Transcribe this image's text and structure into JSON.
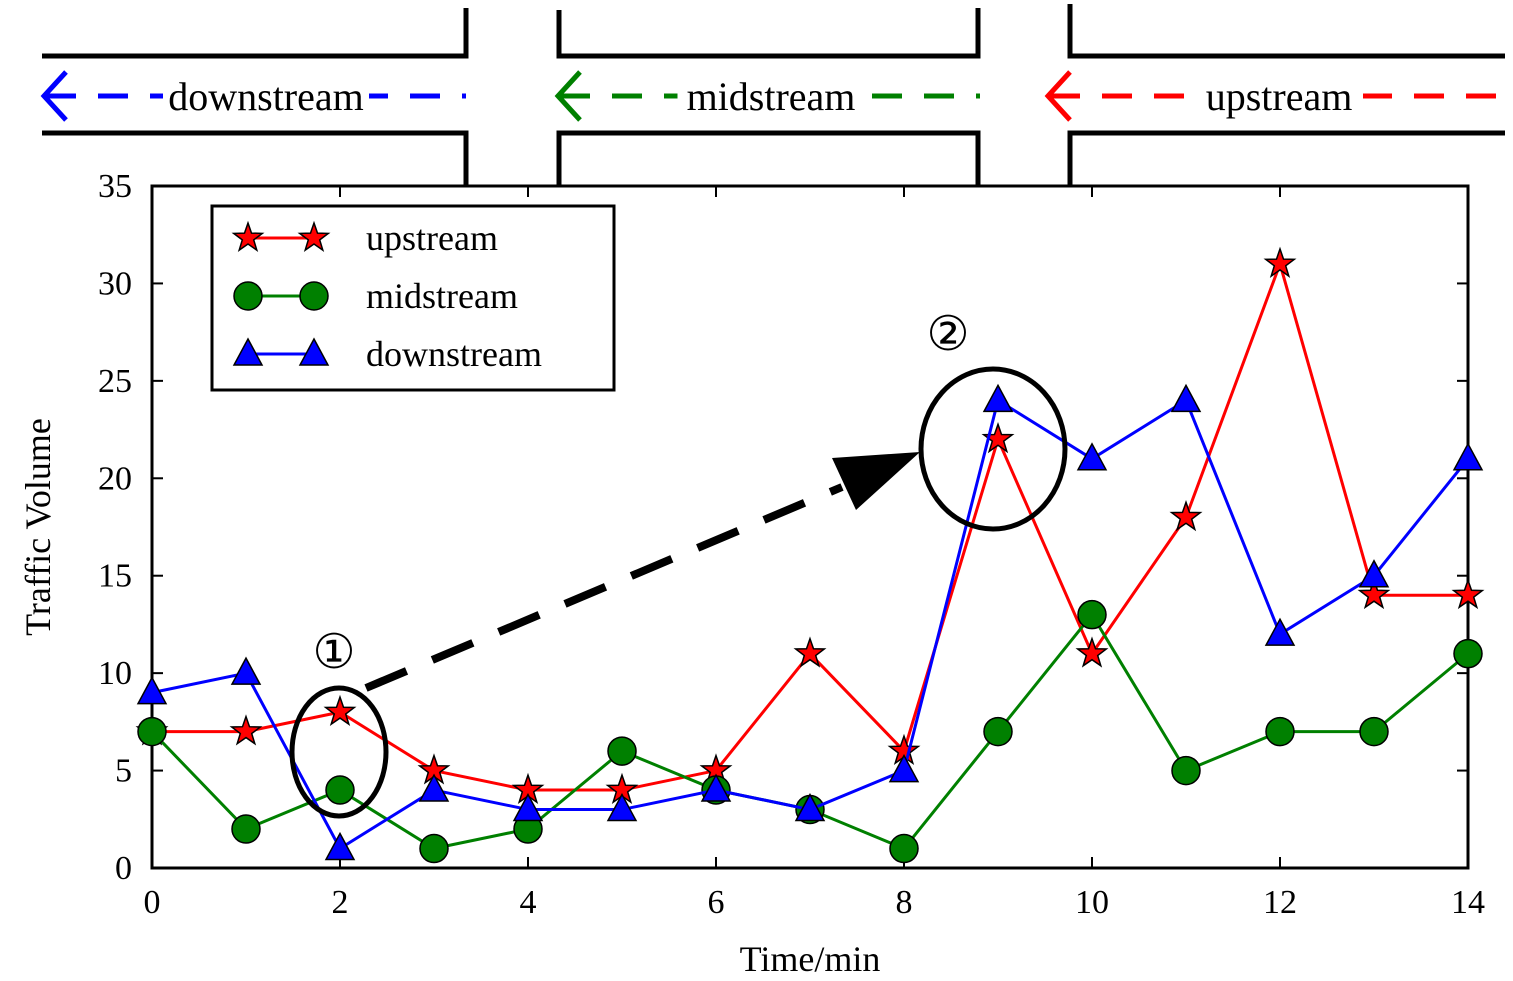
{
  "road_diagram": {
    "segments": [
      {
        "name": "downstream",
        "label": "downstream",
        "color": "#0000ff"
      },
      {
        "name": "midstream",
        "label": "midstream",
        "color": "#008000"
      },
      {
        "name": "upstream",
        "label": "upstream",
        "color": "#ff0000"
      }
    ]
  },
  "chart_data": {
    "type": "line",
    "title": "",
    "xlabel": "Time/min",
    "ylabel": "Traffic Volume",
    "xlim": [
      0,
      14
    ],
    "ylim": [
      0,
      35
    ],
    "xticks": [
      0,
      2,
      4,
      6,
      8,
      10,
      12,
      14
    ],
    "yticks": [
      0,
      5,
      10,
      15,
      20,
      25,
      30,
      35
    ],
    "x": [
      0,
      1,
      2,
      3,
      4,
      5,
      6,
      7,
      8,
      9,
      10,
      11,
      12,
      13,
      14
    ],
    "series": [
      {
        "name": "upstream",
        "color": "#ff0000",
        "marker": "star",
        "values": [
          7,
          7,
          8,
          5,
          4,
          4,
          5,
          11,
          6,
          22,
          11,
          18,
          31,
          14,
          14
        ]
      },
      {
        "name": "midstream",
        "color": "#008000",
        "marker": "circle",
        "values": [
          7,
          2,
          4,
          1,
          2,
          6,
          4,
          3,
          1,
          7,
          13,
          5,
          7,
          7,
          11
        ]
      },
      {
        "name": "downstream",
        "color": "#0000ff",
        "marker": "triangle",
        "values": [
          9,
          10,
          1,
          4,
          3,
          3,
          4,
          3,
          5,
          24,
          21,
          24,
          12,
          15,
          21
        ]
      }
    ],
    "legend_position": "top-left",
    "grid": false,
    "annotations": [
      {
        "label": "①",
        "x": 2,
        "y": 6
      },
      {
        "label": "②",
        "x": 9,
        "y": 22
      }
    ]
  }
}
